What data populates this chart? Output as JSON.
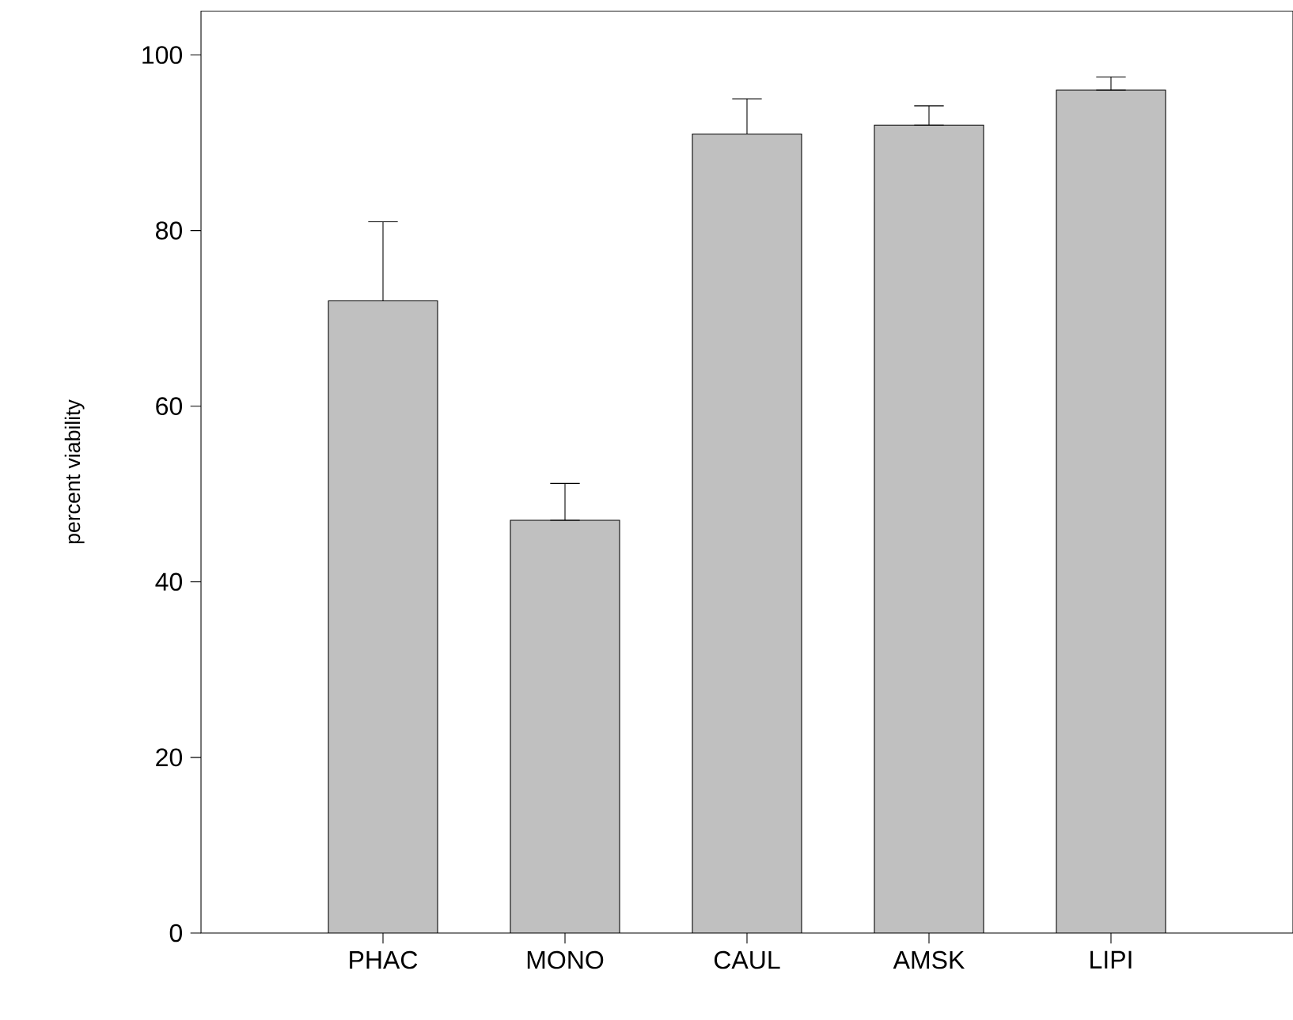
{
  "chart_data": {
    "type": "bar",
    "ylabel": "percent viability",
    "categories": [
      "PHAC",
      "MONO",
      "CAUL",
      "AMSK",
      "LIPI"
    ],
    "values": [
      72,
      47,
      91,
      92,
      96
    ],
    "errors": [
      [
        72,
        81
      ],
      [
        47,
        51.2
      ],
      [
        91,
        95
      ],
      [
        92,
        94.2
      ],
      [
        96,
        97.5
      ]
    ],
    "color": "#c0c0c0",
    "ylim": [
      0,
      105
    ],
    "yticks": [
      0,
      20,
      40,
      60,
      80,
      100
    ],
    "grid": false
  }
}
